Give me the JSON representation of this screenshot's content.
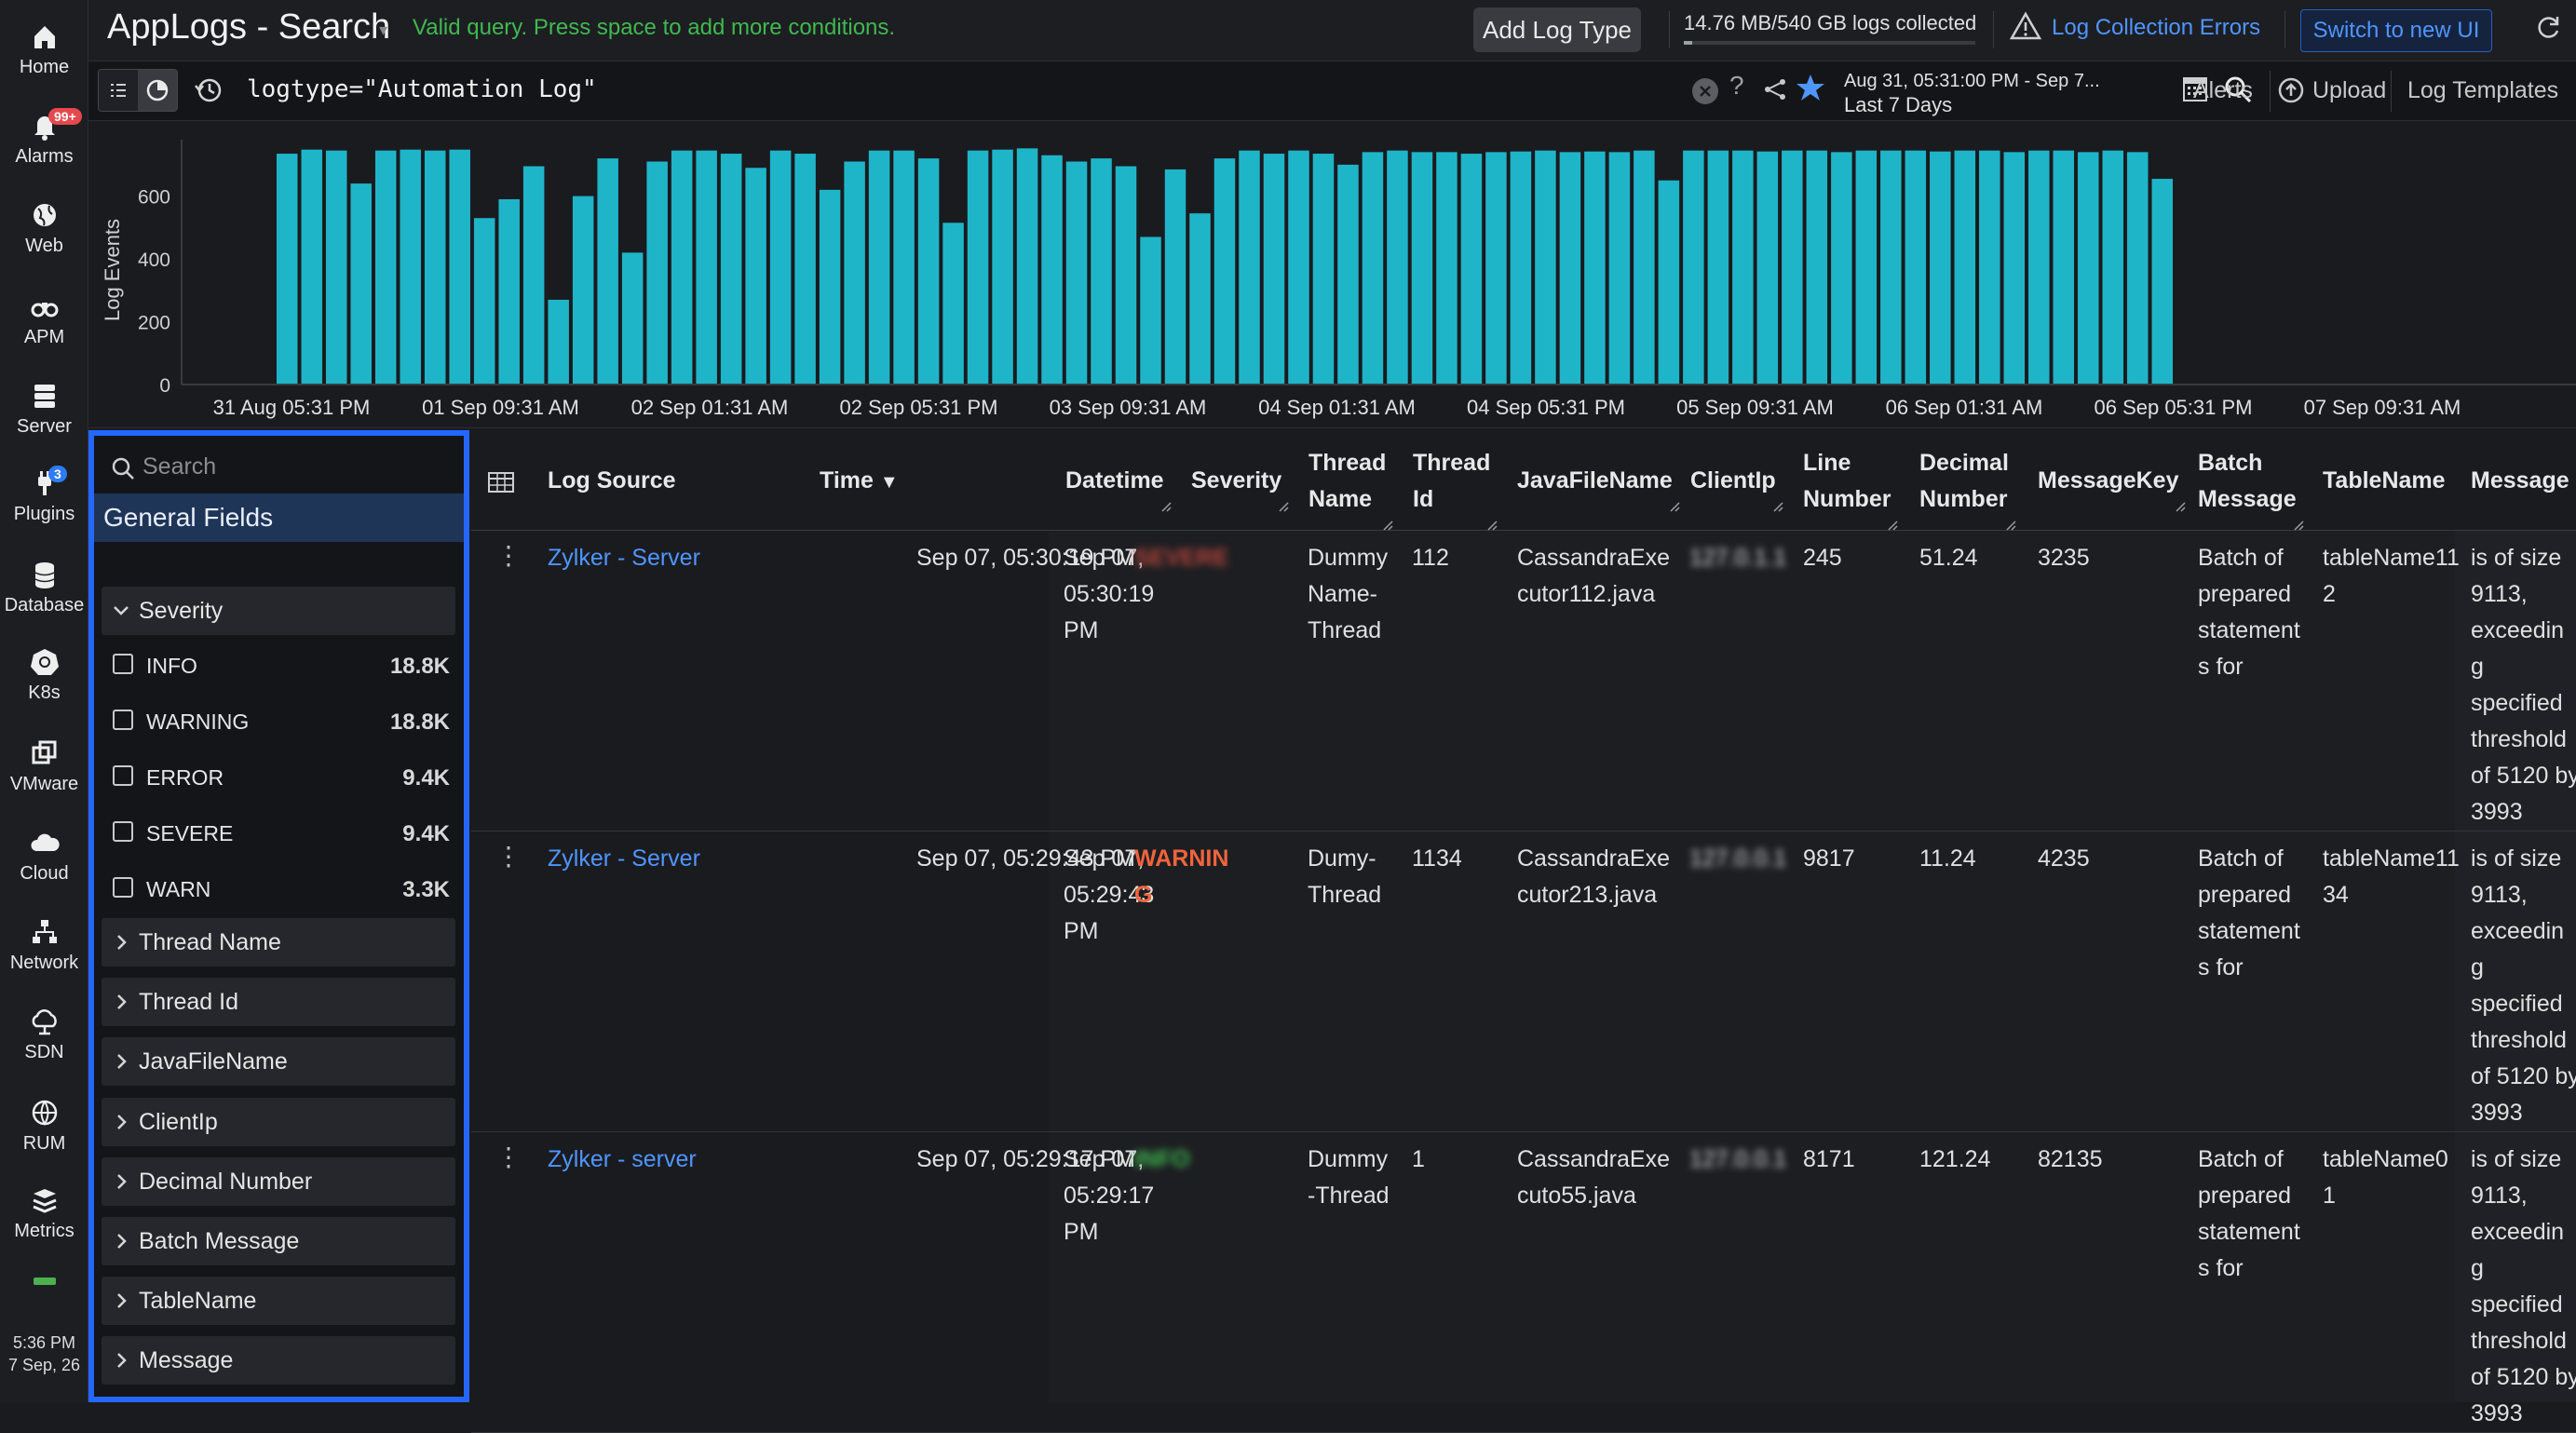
{
  "nav": {
    "items": [
      {
        "label": "Home",
        "icon": "home-icon"
      },
      {
        "label": "Alarms",
        "icon": "bell-icon",
        "badge": "99+"
      },
      {
        "label": "Web",
        "icon": "globe-icon"
      },
      {
        "label": "APM",
        "icon": "binoculars-icon"
      },
      {
        "label": "Server",
        "icon": "server-icon"
      },
      {
        "label": "Plugins",
        "icon": "plug-icon",
        "badge": "3"
      },
      {
        "label": "Database",
        "icon": "database-icon"
      },
      {
        "label": "K8s",
        "icon": "kubernetes-icon"
      },
      {
        "label": "VMware",
        "icon": "vmware-icon"
      },
      {
        "label": "Cloud",
        "icon": "cloud-icon"
      },
      {
        "label": "Network",
        "icon": "network-icon"
      },
      {
        "label": "SDN",
        "icon": "sdn-icon"
      },
      {
        "label": "RUM",
        "icon": "rum-icon"
      },
      {
        "label": "Metrics",
        "icon": "metrics-icon"
      }
    ],
    "clock_time": "5:36 PM",
    "clock_date": "7 Sep, 26"
  },
  "header": {
    "title": "AppLogs - Search",
    "valid_message": "Valid query. Press space to add more conditions.",
    "add_log_type": "Add Log Type",
    "storage_text": "14.76 MB/540 GB logs collected",
    "storage_fraction": 0.03,
    "log_errors": "Log Collection Errors",
    "switch_ui": "Switch to new UI"
  },
  "query": {
    "text": "logtype=\"Automation Log\"",
    "help": "?",
    "date_range": "Aug 31, 05:31:00 PM - Sep 7...",
    "date_preset": "Last 7 Days",
    "alerts": "Alerts",
    "upload": "Upload",
    "templates": "Log Templates"
  },
  "chart_data": {
    "type": "bar",
    "ylabel": "Log Events",
    "ylim": [
      0,
      750
    ],
    "yticks": [
      0,
      200,
      400,
      600
    ],
    "xtick_labels": [
      "31 Aug 05:31 PM",
      "01 Sep 09:31 AM",
      "02 Sep 01:31 AM",
      "02 Sep 05:31 PM",
      "03 Sep 09:31 AM",
      "04 Sep 01:31 AM",
      "04 Sep 05:31 PM",
      "05 Sep 09:31 AM",
      "06 Sep 01:31 AM",
      "06 Sep 05:31 PM",
      "07 Sep 09:31 AM"
    ],
    "color": "#1fb5c9",
    "values": [
      735,
      748,
      745,
      640,
      745,
      748,
      745,
      748,
      530,
      590,
      695,
      270,
      600,
      720,
      420,
      710,
      745,
      745,
      735,
      690,
      745,
      735,
      620,
      710,
      745,
      745,
      720,
      515,
      745,
      748,
      752,
      730,
      710,
      720,
      695,
      470,
      685,
      545,
      720,
      745,
      735,
      745,
      735,
      700,
      740,
      745,
      740,
      740,
      735,
      740,
      742,
      745,
      740,
      742,
      740,
      745,
      650,
      745,
      745,
      745,
      742,
      745,
      745,
      740,
      745,
      745,
      745,
      742,
      745,
      745,
      740,
      745,
      745,
      740,
      745,
      740,
      655
    ]
  },
  "filters": {
    "search_placeholder": "Search",
    "general_fields": "General Fields",
    "severity_label": "Severity",
    "severity_options": [
      {
        "label": "INFO",
        "count": "18.8K"
      },
      {
        "label": "WARNING",
        "count": "18.8K"
      },
      {
        "label": "ERROR",
        "count": "9.4K"
      },
      {
        "label": "SEVERE",
        "count": "9.4K"
      },
      {
        "label": "WARN",
        "count": "3.3K"
      }
    ],
    "groups": [
      "Thread Name",
      "Thread Id",
      "JavaFileName",
      "ClientIp",
      "Decimal Number",
      "Batch Message",
      "TableName",
      "Message"
    ]
  },
  "table": {
    "columns": {
      "log_source": "Log Source",
      "time": "Time",
      "datetime": "Datetime",
      "severity": "Severity",
      "thread_name": [
        "Thread",
        "Name"
      ],
      "thread_id": [
        "Thread",
        "Id"
      ],
      "java_file": "JavaFileName",
      "client_ip": "ClientIp",
      "line_number": [
        "Line",
        "Number"
      ],
      "decimal_number": [
        "Decimal",
        "Number"
      ],
      "message_key": "MessageKey",
      "batch_message": [
        "Batch",
        "Message"
      ],
      "table_name": "TableName",
      "message": "Message"
    },
    "rows": [
      {
        "source": "Zylker - Server",
        "time": "Sep 07, 05:30:19 PM",
        "datetime": [
          "Sep 07,",
          "05:30:19",
          "PM"
        ],
        "severity": [
          "SEVERE"
        ],
        "severity_color": "#b5453a",
        "severity_blurred": true,
        "thread_name": [
          "Dummy",
          "Name-",
          "Thread"
        ],
        "thread_id": "112",
        "java_file": [
          "CassandraExe",
          "cutor112.java"
        ],
        "client_ip": "127.0.1.1",
        "line_number": "245",
        "decimal_number": "51.24",
        "message_key": "3235",
        "batch_message": [
          "Batch of",
          "prepared",
          "statement",
          "s for"
        ],
        "table_name": [
          "tableName11",
          "2"
        ],
        "message": [
          "is of size",
          "9113,",
          "exceedin",
          "g",
          "specified",
          "threshold",
          "of 5120 by",
          "3993"
        ]
      },
      {
        "source": "Zylker - Server",
        "time": "Sep 07, 05:29:43 PM",
        "datetime": [
          "Sep 07,",
          "05:29:43",
          "PM"
        ],
        "severity": [
          "WARNIN",
          "G"
        ],
        "severity_color": "#f0643c",
        "severity_blurred": false,
        "thread_name": [
          "Dumy-",
          "Thread"
        ],
        "thread_id": "1134",
        "java_file": [
          "CassandraExe",
          "cutor213.java"
        ],
        "client_ip": "127.0.0.1",
        "line_number": "9817",
        "decimal_number": "11.24",
        "message_key": "4235",
        "batch_message": [
          "Batch of",
          "prepared",
          "statement",
          "s for"
        ],
        "table_name": [
          "tableName11",
          "34"
        ],
        "message": [
          "is of size",
          "9113,",
          "exceedin",
          "g",
          "specified",
          "threshold",
          "of 5120 by",
          "3993"
        ]
      },
      {
        "source": "Zylker - server",
        "time": "Sep 07, 05:29:17 PM",
        "datetime": [
          "Sep 07,",
          "05:29:17",
          "PM"
        ],
        "severity": [
          "INFO"
        ],
        "severity_color": "#3fb950",
        "severity_blurred": true,
        "thread_name": [
          "Dummy",
          "-Thread"
        ],
        "thread_id": "1",
        "java_file": [
          "CassandraExe",
          "cuto55.java"
        ],
        "client_ip": "127.0.0.1",
        "line_number": "8171",
        "decimal_number": "121.24",
        "message_key": "82135",
        "batch_message": [
          "Batch of",
          "prepared",
          "statement",
          "s for"
        ],
        "table_name": [
          "tableName0",
          "1"
        ],
        "message": [
          "is of size",
          "9113,",
          "exceedin",
          "g",
          "specified",
          "threshold",
          "of 5120 by",
          "3993"
        ]
      }
    ]
  }
}
